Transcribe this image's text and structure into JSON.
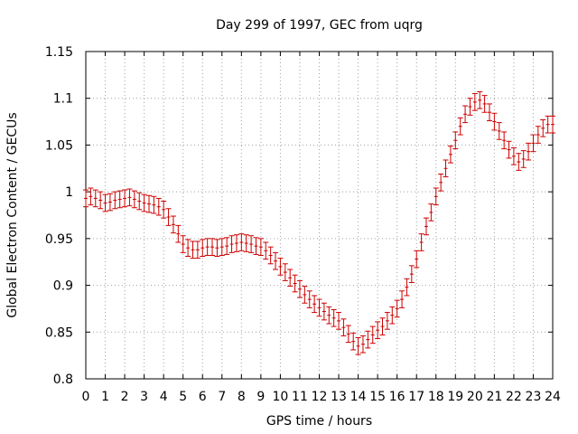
{
  "chart_data": {
    "type": "scatter",
    "title": "Day 299 of 1997, GEC from uqrg",
    "xlabel": "GPS time / hours",
    "ylabel": "Global Electron Content / GECUs",
    "xlim": [
      0,
      24
    ],
    "ylim": [
      0.8,
      1.15
    ],
    "xticks": [
      0,
      1,
      2,
      3,
      4,
      5,
      6,
      7,
      8,
      9,
      10,
      11,
      12,
      13,
      14,
      15,
      16,
      17,
      18,
      19,
      20,
      21,
      22,
      23,
      24
    ],
    "yticks": [
      0.8,
      0.85,
      0.9,
      0.95,
      1,
      1.05,
      1.1,
      1.15
    ],
    "ytick_labels": [
      "0.8",
      "0.85",
      "0.9",
      "0.95",
      "1",
      "1.05",
      "1.1",
      "1.15"
    ],
    "grid": true,
    "error_bars": true,
    "color": "#cc0000",
    "series": [
      {
        "x": [
          0,
          0.25,
          0.5,
          0.75,
          1,
          1.25,
          1.5,
          1.75,
          2,
          2.25,
          2.5,
          2.75,
          3,
          3.25,
          3.5,
          3.75,
          4,
          4.25,
          4.5,
          4.75,
          5,
          5.25,
          5.5,
          5.75,
          6,
          6.25,
          6.5,
          6.75,
          7,
          7.25,
          7.5,
          7.75,
          8,
          8.25,
          8.5,
          8.75,
          9,
          9.25,
          9.5,
          9.75,
          10,
          10.25,
          10.5,
          10.75,
          11,
          11.25,
          11.5,
          11.75,
          12,
          12.25,
          12.5,
          12.75,
          13,
          13.25,
          13.5,
          13.75,
          14,
          14.25,
          14.5,
          14.75,
          15,
          15.25,
          15.5,
          15.75,
          16,
          16.25,
          16.5,
          16.75,
          17,
          17.25,
          17.5,
          17.75,
          18,
          18.25,
          18.5,
          18.75,
          19,
          19.25,
          19.5,
          19.75,
          20,
          20.25,
          20.5,
          20.75,
          21,
          21.25,
          21.5,
          21.75,
          22,
          22.25,
          22.5,
          22.75,
          23,
          23.25,
          23.5,
          23.75,
          24
        ],
        "y": [
          0.993,
          0.995,
          0.993,
          0.991,
          0.988,
          0.989,
          0.991,
          0.992,
          0.993,
          0.994,
          0.992,
          0.99,
          0.988,
          0.987,
          0.986,
          0.984,
          0.981,
          0.973,
          0.965,
          0.955,
          0.944,
          0.94,
          0.938,
          0.938,
          0.94,
          0.941,
          0.941,
          0.94,
          0.941,
          0.942,
          0.944,
          0.945,
          0.946,
          0.945,
          0.944,
          0.942,
          0.941,
          0.937,
          0.932,
          0.926,
          0.92,
          0.914,
          0.908,
          0.902,
          0.896,
          0.89,
          0.885,
          0.88,
          0.876,
          0.872,
          0.868,
          0.865,
          0.862,
          0.855,
          0.848,
          0.84,
          0.835,
          0.837,
          0.842,
          0.847,
          0.852,
          0.856,
          0.862,
          0.868,
          0.875,
          0.885,
          0.898,
          0.912,
          0.928,
          0.946,
          0.963,
          0.978,
          0.995,
          1.01,
          1.025,
          1.04,
          1.055,
          1.07,
          1.083,
          1.091,
          1.096,
          1.098,
          1.094,
          1.085,
          1.075,
          1.065,
          1.055,
          1.045,
          1.038,
          1.032,
          1.035,
          1.043,
          1.052,
          1.061,
          1.068,
          1.072,
          1.072
        ],
        "error": 0.009
      }
    ]
  }
}
